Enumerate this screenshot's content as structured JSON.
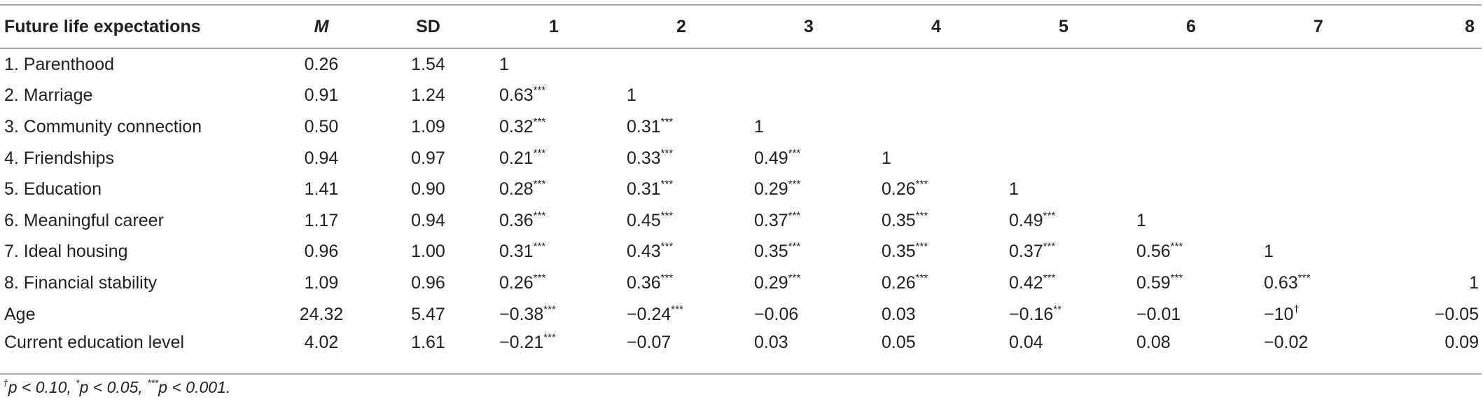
{
  "table": {
    "header": [
      "Future life expectations",
      "M",
      "SD",
      "1",
      "2",
      "3",
      "4",
      "5",
      "6",
      "7",
      "8"
    ],
    "rows": [
      [
        "1. Parenthood",
        "0.26",
        "1.54",
        "1"
      ],
      [
        "2. Marriage",
        "0.91",
        "1.24",
        "0.63***",
        "1"
      ],
      [
        "3. Community connection",
        "0.50",
        "1.09",
        "0.32***",
        "0.31***",
        "1"
      ],
      [
        "4. Friendships",
        "0.94",
        "0.97",
        "0.21***",
        "0.33***",
        "0.49***",
        "1"
      ],
      [
        "5. Education",
        "1.41",
        "0.90",
        "0.28***",
        "0.31***",
        "0.29***",
        "0.26***",
        "1"
      ],
      [
        "6. Meaningful career",
        "1.17",
        "0.94",
        "0.36***",
        "0.45***",
        "0.37***",
        "0.35***",
        "0.49***",
        "1"
      ],
      [
        "7. Ideal housing",
        "0.96",
        "1.00",
        "0.31***",
        "0.43***",
        "0.35***",
        "0.35***",
        "0.37***",
        "0.56***",
        "1"
      ],
      [
        "8. Financial stability",
        "1.09",
        "0.96",
        "0.26***",
        "0.36***",
        "0.29***",
        "0.26***",
        "0.42***",
        "0.59***",
        "0.63***",
        "1"
      ],
      [
        "Age",
        "24.32",
        "5.47",
        "−0.38***",
        "−0.24***",
        "−0.06",
        "0.03",
        "−0.16**",
        "−0.01",
        "−10†",
        "−0.05"
      ],
      [
        "Current education level",
        "4.02",
        "1.61",
        "−0.21***",
        "−0.07",
        "0.03",
        "0.05",
        "0.04",
        "0.08",
        "−0.02",
        "0.09"
      ]
    ],
    "footnote": "†p < 0.10, *p < 0.05, ***p < 0.001."
  }
}
